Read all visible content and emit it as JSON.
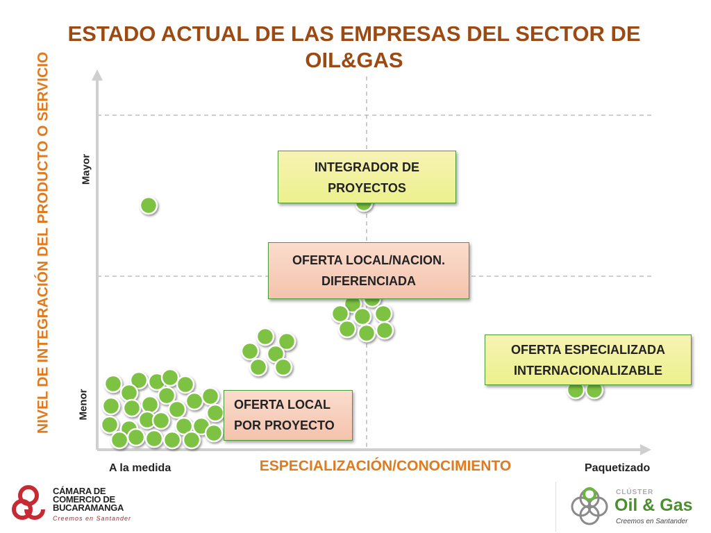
{
  "title": "ESTADO ACTUAL DE LAS EMPRESAS DEL SECTOR DE OIL&GAS",
  "axes": {
    "y_label": "NIVEL DE INTEGRACIÓN DEL PRODUCTO O SERVICIO",
    "y_tick_high": "Mayor",
    "y_tick_low": "Menor",
    "x_label": "ESPECIALIZACIÓN/CONOCIMIENTO",
    "x_tick_low": "A la medida",
    "x_tick_high": "Paquetizado"
  },
  "boxes": {
    "integrador": "INTEGRADOR DE PROYECTOS",
    "oferta_nacional": "OFERTA LOCAL/NACION. DIFERENCIADA",
    "oferta_especializada": "OFERTA ESPECIALIZADA INTERNACIONALIZABLE",
    "oferta_local": "OFERTA LOCAL POR PROYECTO"
  },
  "colors": {
    "title": "#9a4a12",
    "axis_label": "#e07a1f",
    "dot": "#7dc242",
    "box_border": "#4a9a3a"
  },
  "logos": {
    "camara_name": "CÁMARA DE COMERCIO DE BUCARAMANGA",
    "camara_tagline": "Creemos en Santander",
    "cluster_small": "CLÚSTER",
    "cluster_big": "Oil & Gas",
    "cluster_tagline": "Creemos en Santander"
  }
}
